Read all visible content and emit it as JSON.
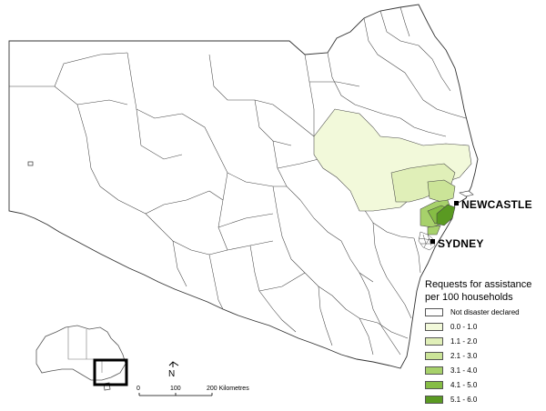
{
  "map": {
    "region": "New South Wales",
    "cities": [
      {
        "name": "NEWCASTLE"
      },
      {
        "name": "SYDNEY"
      }
    ]
  },
  "legend": {
    "title_line1": "Requests for assistance",
    "title_line2": "per 100 households",
    "items": [
      {
        "label": "Not disaster declared",
        "color": "#ffffff"
      },
      {
        "label": "0.0 - 1.0",
        "color": "#f2f9da"
      },
      {
        "label": "1.1 - 2.0",
        "color": "#e0efb8"
      },
      {
        "label": "2.1 - 3.0",
        "color": "#cbe498"
      },
      {
        "label": "3.1 - 4.0",
        "color": "#a7d16b"
      },
      {
        "label": "4.1 - 5.0",
        "color": "#86bd45"
      },
      {
        "label": "5.1 - 6.0",
        "color": "#5a9a22"
      }
    ]
  },
  "scale_bar": {
    "ticks": [
      "0",
      "100",
      "200 Kilometres"
    ]
  },
  "north_arrow": {
    "label": "N"
  },
  "colors": {
    "boundary": "#333333",
    "choropleth_low": "#f2f9da",
    "choropleth_high": "#5a9a22"
  }
}
